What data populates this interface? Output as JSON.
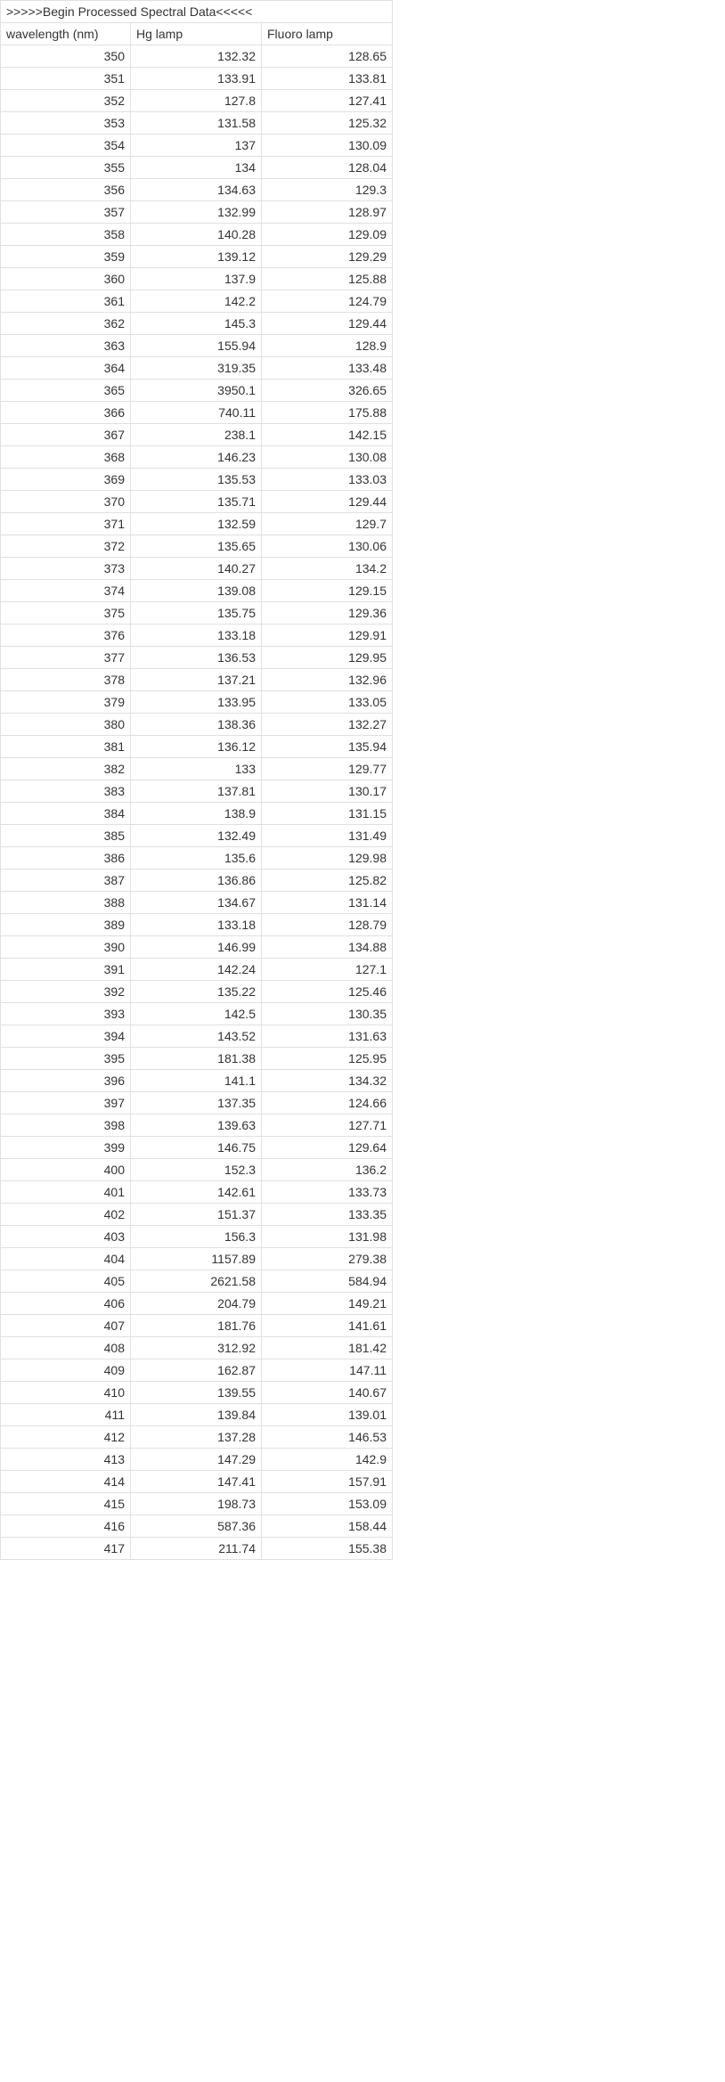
{
  "table": {
    "title": ">>>>>Begin Processed Spectral Data<<<<<",
    "columns": [
      "wavelength (nm)",
      "Hg lamp",
      "Fluoro lamp"
    ],
    "rows": [
      [
        "350",
        "132.32",
        "128.65"
      ],
      [
        "351",
        "133.91",
        "133.81"
      ],
      [
        "352",
        "127.8",
        "127.41"
      ],
      [
        "353",
        "131.58",
        "125.32"
      ],
      [
        "354",
        "137",
        "130.09"
      ],
      [
        "355",
        "134",
        "128.04"
      ],
      [
        "356",
        "134.63",
        "129.3"
      ],
      [
        "357",
        "132.99",
        "128.97"
      ],
      [
        "358",
        "140.28",
        "129.09"
      ],
      [
        "359",
        "139.12",
        "129.29"
      ],
      [
        "360",
        "137.9",
        "125.88"
      ],
      [
        "361",
        "142.2",
        "124.79"
      ],
      [
        "362",
        "145.3",
        "129.44"
      ],
      [
        "363",
        "155.94",
        "128.9"
      ],
      [
        "364",
        "319.35",
        "133.48"
      ],
      [
        "365",
        "3950.1",
        "326.65"
      ],
      [
        "366",
        "740.11",
        "175.88"
      ],
      [
        "367",
        "238.1",
        "142.15"
      ],
      [
        "368",
        "146.23",
        "130.08"
      ],
      [
        "369",
        "135.53",
        "133.03"
      ],
      [
        "370",
        "135.71",
        "129.44"
      ],
      [
        "371",
        "132.59",
        "129.7"
      ],
      [
        "372",
        "135.65",
        "130.06"
      ],
      [
        "373",
        "140.27",
        "134.2"
      ],
      [
        "374",
        "139.08",
        "129.15"
      ],
      [
        "375",
        "135.75",
        "129.36"
      ],
      [
        "376",
        "133.18",
        "129.91"
      ],
      [
        "377",
        "136.53",
        "129.95"
      ],
      [
        "378",
        "137.21",
        "132.96"
      ],
      [
        "379",
        "133.95",
        "133.05"
      ],
      [
        "380",
        "138.36",
        "132.27"
      ],
      [
        "381",
        "136.12",
        "135.94"
      ],
      [
        "382",
        "133",
        "129.77"
      ],
      [
        "383",
        "137.81",
        "130.17"
      ],
      [
        "384",
        "138.9",
        "131.15"
      ],
      [
        "385",
        "132.49",
        "131.49"
      ],
      [
        "386",
        "135.6",
        "129.98"
      ],
      [
        "387",
        "136.86",
        "125.82"
      ],
      [
        "388",
        "134.67",
        "131.14"
      ],
      [
        "389",
        "133.18",
        "128.79"
      ],
      [
        "390",
        "146.99",
        "134.88"
      ],
      [
        "391",
        "142.24",
        "127.1"
      ],
      [
        "392",
        "135.22",
        "125.46"
      ],
      [
        "393",
        "142.5",
        "130.35"
      ],
      [
        "394",
        "143.52",
        "131.63"
      ],
      [
        "395",
        "181.38",
        "125.95"
      ],
      [
        "396",
        "141.1",
        "134.32"
      ],
      [
        "397",
        "137.35",
        "124.66"
      ],
      [
        "398",
        "139.63",
        "127.71"
      ],
      [
        "399",
        "146.75",
        "129.64"
      ],
      [
        "400",
        "152.3",
        "136.2"
      ],
      [
        "401",
        "142.61",
        "133.73"
      ],
      [
        "402",
        "151.37",
        "133.35"
      ],
      [
        "403",
        "156.3",
        "131.98"
      ],
      [
        "404",
        "1157.89",
        "279.38"
      ],
      [
        "405",
        "2621.58",
        "584.94"
      ],
      [
        "406",
        "204.79",
        "149.21"
      ],
      [
        "407",
        "181.76",
        "141.61"
      ],
      [
        "408",
        "312.92",
        "181.42"
      ],
      [
        "409",
        "162.87",
        "147.11"
      ],
      [
        "410",
        "139.55",
        "140.67"
      ],
      [
        "411",
        "139.84",
        "139.01"
      ],
      [
        "412",
        "137.28",
        "146.53"
      ],
      [
        "413",
        "147.29",
        "142.9"
      ],
      [
        "414",
        "147.41",
        "157.91"
      ],
      [
        "415",
        "198.73",
        "153.09"
      ],
      [
        "416",
        "587.36",
        "158.44"
      ],
      [
        "417",
        "211.74",
        "155.38"
      ]
    ]
  }
}
